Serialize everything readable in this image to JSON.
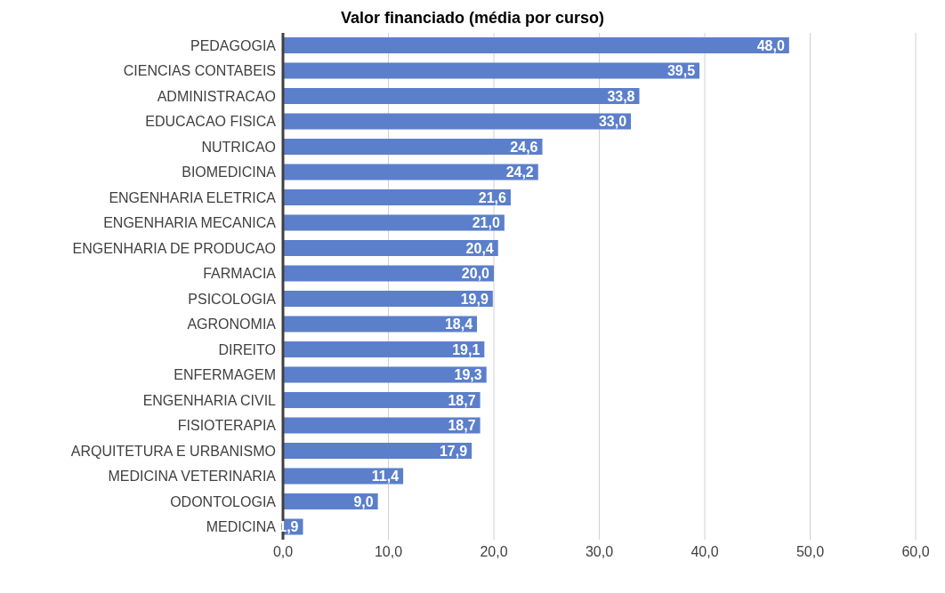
{
  "chart_data": {
    "type": "bar",
    "orientation": "horizontal",
    "title": "Valor financiado (média por curso)",
    "categories": [
      "PEDAGOGIA",
      "CIENCIAS CONTABEIS",
      "ADMINISTRACAO",
      "EDUCACAO FISICA",
      "NUTRICAO",
      "BIOMEDICINA",
      "ENGENHARIA ELETRICA",
      "ENGENHARIA MECANICA",
      "ENGENHARIA DE PRODUCAO",
      "FARMACIA",
      "PSICOLOGIA",
      "AGRONOMIA",
      "DIREITO",
      "ENFERMAGEM",
      "ENGENHARIA CIVIL",
      "FISIOTERAPIA",
      "ARQUITETURA E URBANISMO",
      "MEDICINA VETERINARIA",
      "ODONTOLOGIA",
      "MEDICINA"
    ],
    "values": [
      48.0,
      39.5,
      33.8,
      33.0,
      24.6,
      24.2,
      21.6,
      21.0,
      20.4,
      20.0,
      19.9,
      18.4,
      19.1,
      19.3,
      18.7,
      18.7,
      17.9,
      11.4,
      9.0,
      1.9
    ],
    "value_labels": [
      "48,0",
      "39,5",
      "33,8",
      "33,0",
      "24,6",
      "24,2",
      "21,6",
      "21,0",
      "20,4",
      "20,0",
      "19,9",
      "18,4",
      "19,1",
      "19,3",
      "18,7",
      "18,7",
      "17,9",
      "11,4",
      "9,0",
      "1,9"
    ],
    "color": "#5b7fcb",
    "xlim": [
      0,
      60
    ],
    "xticks": [
      {
        "value": 0,
        "label": "0,0"
      },
      {
        "value": 10,
        "label": "10,0"
      },
      {
        "value": 20,
        "label": "20,0"
      },
      {
        "value": 30,
        "label": "30,0"
      },
      {
        "value": 40,
        "label": "40,0"
      },
      {
        "value": 50,
        "label": "50,0"
      },
      {
        "value": 60,
        "label": "60,0"
      }
    ],
    "grid": "x"
  }
}
